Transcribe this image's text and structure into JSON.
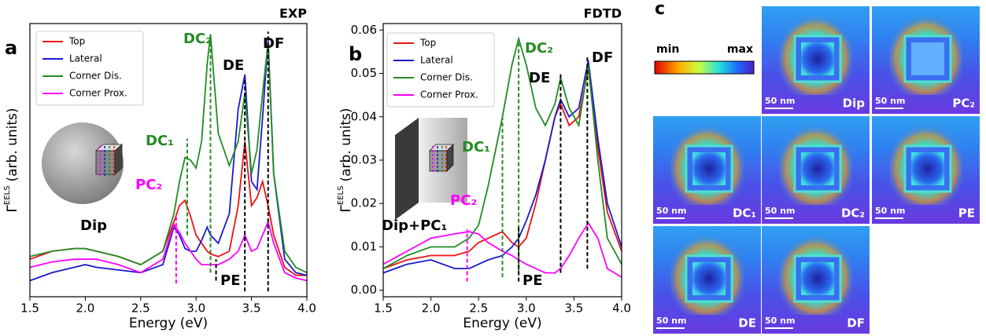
{
  "chart_data": [
    {
      "type": "line",
      "panel": "a",
      "title": "EXP",
      "xlabel": "Energy (eV)",
      "ylabel": [
        "Γ",
        "EELS",
        "(arb. units)"
      ],
      "x": [
        1.5,
        1.7,
        1.9,
        2.0,
        2.1,
        2.3,
        2.5,
        2.7,
        2.8,
        2.85,
        2.9,
        2.95,
        3.0,
        3.05,
        3.1,
        3.13,
        3.2,
        3.3,
        3.38,
        3.44,
        3.5,
        3.55,
        3.6,
        3.65,
        3.7,
        3.8,
        3.9,
        4.0
      ],
      "xlim": [
        1.5,
        4.0
      ],
      "ylim": [
        -0.02,
        1.0
      ],
      "xticks": [
        1.5,
        {
          "value": 2.0,
          "label": "2.0"
        },
        2.5,
        {
          "value": 3.0,
          "label": "3.0"
        },
        3.5,
        {
          "value": 4.0,
          "label": "4.0"
        }
      ],
      "legend": "upper left",
      "series": [
        {
          "name": "Top",
          "color": "#ee1111",
          "values": [
            0.12,
            0.15,
            0.16,
            0.16,
            0.15,
            0.13,
            0.1,
            0.15,
            0.26,
            0.32,
            0.34,
            0.28,
            0.21,
            0.18,
            0.15,
            0.14,
            0.13,
            0.15,
            0.32,
            0.56,
            0.32,
            0.35,
            0.41,
            0.32,
            0.21,
            0.09,
            0.06,
            0.06
          ]
        },
        {
          "name": "Lateral",
          "color": "#1a1ad0",
          "values": [
            0.04,
            0.07,
            0.09,
            0.1,
            0.09,
            0.08,
            0.07,
            0.1,
            0.24,
            0.21,
            0.16,
            0.15,
            0.15,
            0.19,
            0.24,
            0.21,
            0.18,
            0.29,
            0.68,
            0.81,
            0.41,
            0.38,
            0.65,
            0.94,
            0.44,
            0.12,
            0.07,
            0.06
          ]
        },
        {
          "name": "Corner Dis.",
          "color": "#238b23",
          "values": [
            0.13,
            0.15,
            0.16,
            0.16,
            0.15,
            0.13,
            0.1,
            0.15,
            0.29,
            0.41,
            0.5,
            0.49,
            0.46,
            0.56,
            0.85,
            0.96,
            0.59,
            0.47,
            0.56,
            0.74,
            0.44,
            0.53,
            0.74,
            0.93,
            0.44,
            0.15,
            0.09,
            0.07
          ]
        },
        {
          "name": "Corner Prox.",
          "color": "#ff00ff",
          "values": [
            0.09,
            0.11,
            0.12,
            0.12,
            0.12,
            0.1,
            0.07,
            0.12,
            0.25,
            0.22,
            0.18,
            0.15,
            0.12,
            0.1,
            0.1,
            0.1,
            0.1,
            0.12,
            0.15,
            0.21,
            0.15,
            0.16,
            0.21,
            0.26,
            0.18,
            0.07,
            0.05,
            0.04
          ]
        }
      ],
      "vlines": [
        {
          "x": 3.13,
          "y": [
            0.07,
            0.96
          ],
          "color": "#238b23"
        },
        {
          "x": 2.92,
          "y": [
            0.21,
            0.57
          ],
          "color": "#238b23"
        },
        {
          "x": 2.82,
          "y": [
            0.03,
            0.28
          ],
          "color": "#ff00ff"
        },
        {
          "x": 3.44,
          "y": [
            0.0,
            0.79
          ],
          "color": "#000000"
        },
        {
          "x": 3.65,
          "y": [
            0.0,
            0.97
          ],
          "color": "#000000"
        },
        {
          "x": 3.18,
          "y": [
            0.04,
            0.12
          ],
          "color": "#000000"
        }
      ],
      "annotations": [
        {
          "text": "DC₂",
          "color": "#238b23"
        },
        {
          "text": "DE",
          "color": "#000000"
        },
        {
          "text": "DF",
          "color": "#000000"
        },
        {
          "text": "DC₁",
          "color": "#238b23"
        },
        {
          "text": "PC₂",
          "color": "#ff00ff"
        },
        {
          "text": "Dip",
          "color": "#000000"
        },
        {
          "text": "PE",
          "color": "#000000"
        }
      ]
    },
    {
      "type": "line",
      "panel": "b",
      "title": "FDTD",
      "xlabel": "Energy (eV)",
      "ylabel": [
        "Γ",
        "EELS",
        "(arb. units)"
      ],
      "x": [
        1.5,
        1.75,
        2.0,
        2.25,
        2.4,
        2.5,
        2.6,
        2.75,
        2.85,
        2.92,
        3.0,
        3.1,
        3.2,
        3.3,
        3.36,
        3.45,
        3.55,
        3.65,
        3.75,
        3.85,
        4.0
      ],
      "xlim": [
        1.5,
        4.0
      ],
      "ylim": [
        -0.0015,
        0.0615
      ],
      "xticks": [
        1.5,
        {
          "value": 2.0,
          "label": "2.0"
        },
        2.5,
        {
          "value": 3.0,
          "label": "3.0"
        },
        3.5,
        {
          "value": 4.0,
          "label": "4.0"
        }
      ],
      "yticks": [
        {
          "value": 0,
          "label": "0.00"
        },
        0.01,
        0.02,
        0.03,
        0.04,
        0.05,
        0.06
      ],
      "legend": "upper left",
      "series": [
        {
          "name": "Top",
          "color": "#ee1111",
          "values": [
            0.005,
            0.007,
            0.008,
            0.008,
            0.009,
            0.011,
            0.012,
            0.0135,
            0.011,
            0.01,
            0.012,
            0.02,
            0.03,
            0.04,
            0.043,
            0.038,
            0.04,
            0.051,
            0.033,
            0.018,
            0.009
          ]
        },
        {
          "name": "Lateral",
          "color": "#1a1ad0",
          "values": [
            0.004,
            0.006,
            0.007,
            0.005,
            0.005,
            0.006,
            0.007,
            0.008,
            0.01,
            0.012,
            0.016,
            0.022,
            0.03,
            0.04,
            0.044,
            0.04,
            0.042,
            0.053,
            0.035,
            0.02,
            0.01
          ]
        },
        {
          "name": "Corner Dis.",
          "color": "#238b23",
          "values": [
            0.005,
            0.008,
            0.01,
            0.01,
            0.012,
            0.015,
            0.024,
            0.04,
            0.052,
            0.058,
            0.052,
            0.042,
            0.038,
            0.043,
            0.049,
            0.042,
            0.038,
            0.052,
            0.03,
            0.012,
            0.006
          ]
        },
        {
          "name": "Corner Prox.",
          "color": "#ff00ff",
          "values": [
            0.006,
            0.009,
            0.012,
            0.013,
            0.0135,
            0.013,
            0.011,
            0.009,
            0.008,
            0.007,
            0.006,
            0.005,
            0.004,
            0.004,
            0.005,
            0.008,
            0.012,
            0.0155,
            0.012,
            0.005,
            0.003
          ]
        }
      ],
      "vlines": [
        {
          "x": 2.92,
          "y": [
            0.004,
            0.058
          ],
          "color": "#238b23"
        },
        {
          "x": 3.36,
          "y": [
            0.004,
            0.05
          ],
          "color": "#000000"
        },
        {
          "x": 3.64,
          "y": [
            0.005,
            0.054
          ],
          "color": "#000000"
        },
        {
          "x": 2.75,
          "y": [
            0.003,
            0.04
          ],
          "color": "#238b23"
        },
        {
          "x": 2.38,
          "y": [
            0.002,
            0.014
          ],
          "color": "#ff00ff"
        },
        {
          "x": 2.92,
          "y": [
            0.002,
            0.015
          ],
          "color": "#000000"
        }
      ],
      "annotations": [
        {
          "text": "DC₂",
          "color": "#238b23"
        },
        {
          "text": "DE",
          "color": "#000000"
        },
        {
          "text": "DF",
          "color": "#000000"
        },
        {
          "text": "DC₁",
          "color": "#238b23"
        },
        {
          "text": "PC₂",
          "color": "#ff00ff"
        },
        {
          "text": "Dip+PC₁",
          "color": "#000000"
        },
        {
          "text": "PE",
          "color": "#000000"
        }
      ]
    }
  ],
  "maps": {
    "panel": "c",
    "colorbar": {
      "min": "min",
      "max": "max"
    },
    "tiles": [
      {
        "label": "Dip",
        "scale": "50 nm"
      },
      {
        "label": "PC₂",
        "scale": "50 nm"
      },
      {
        "label": "DC₁",
        "scale": "50 nm"
      },
      {
        "label": "DC₂",
        "scale": "50 nm"
      },
      {
        "label": "PE",
        "scale": "50 nm"
      },
      {
        "label": "DE",
        "scale": "50 nm"
      },
      {
        "label": "DF",
        "scale": "50 nm"
      }
    ]
  }
}
